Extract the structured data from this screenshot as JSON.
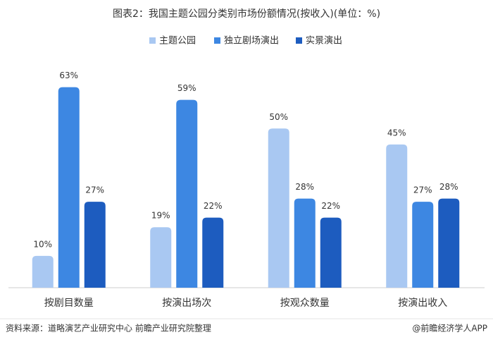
{
  "chart_data": {
    "type": "bar",
    "title": "图表2：我国主题公园分类别市场份额情况(按收入)(单位：%)",
    "categories": [
      "按剧目数量",
      "按演出场次",
      "按观众数量",
      "按演出收入"
    ],
    "series": [
      {
        "name": "主题公园",
        "color": "#a9c8f2",
        "values": [
          10,
          19,
          50,
          45
        ],
        "value_labels": [
          "10%",
          "19%",
          "50%",
          "45%"
        ]
      },
      {
        "name": "独立剧场演出",
        "color": "#3d87e2",
        "values": [
          63,
          59,
          28,
          27
        ],
        "value_labels": [
          "63%",
          "59%",
          "28%",
          "27%"
        ]
      },
      {
        "name": "实景演出",
        "color": "#1d5cbf",
        "values": [
          27,
          22,
          22,
          28
        ],
        "value_labels": [
          "27%",
          "22%",
          "22%",
          "28%"
        ]
      }
    ],
    "ylim": [
      0,
      70
    ],
    "legend": "top",
    "source": "资料来源：道略演艺产业研究中心 前瞻产业研究院整理",
    "credit": "@前瞻经济学人APP"
  }
}
